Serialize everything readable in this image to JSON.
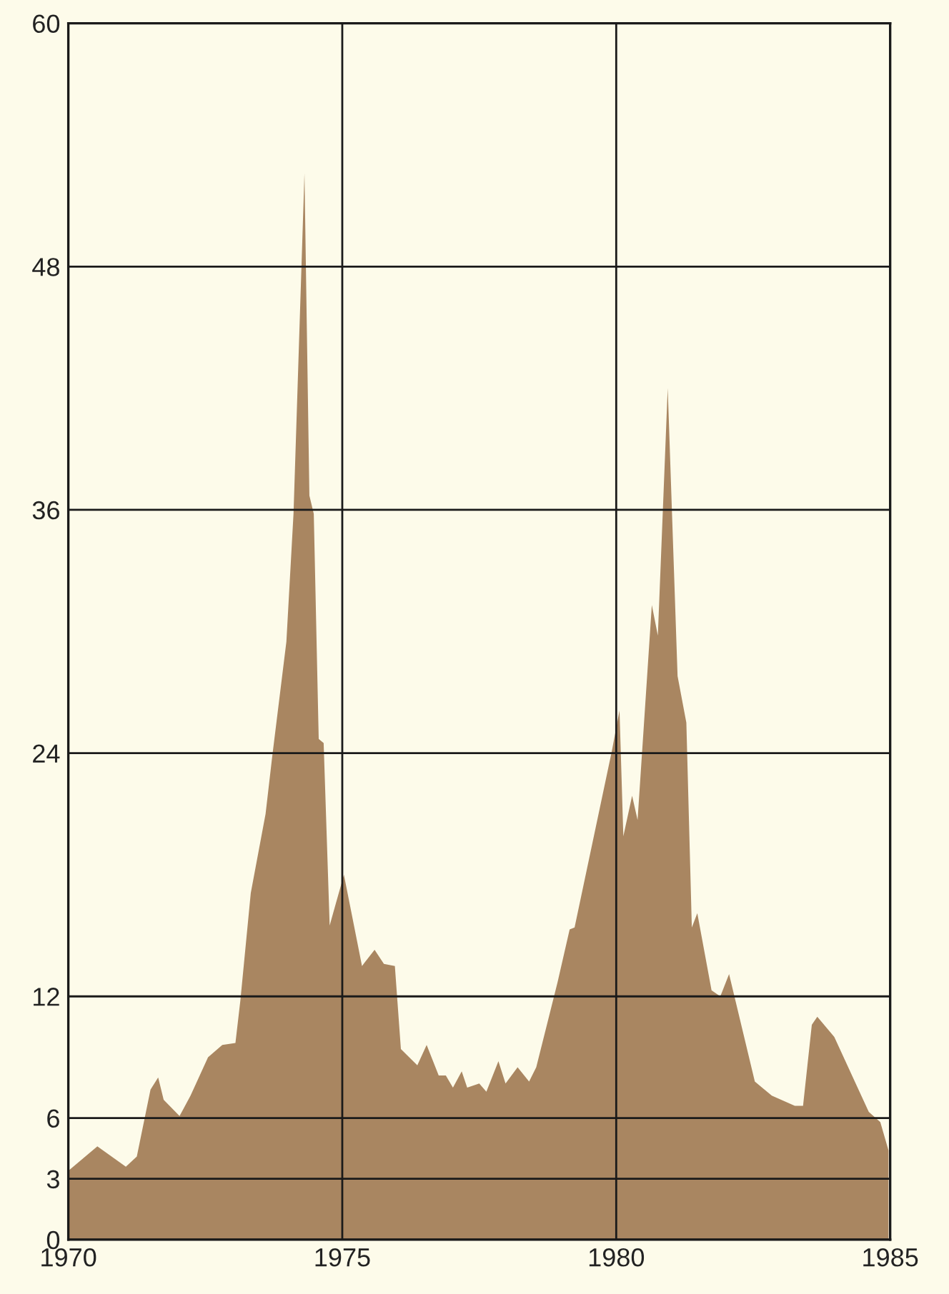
{
  "chart_data": {
    "type": "area",
    "x": [
      1970.0,
      1970.53,
      1971.05,
      1971.25,
      1971.5,
      1971.64,
      1971.74,
      1972.03,
      1972.23,
      1972.55,
      1972.81,
      1973.05,
      1973.14,
      1973.33,
      1973.6,
      1973.72,
      1973.98,
      1974.11,
      1974.31,
      1974.4,
      1974.48,
      1974.57,
      1974.66,
      1974.77,
      1975.03,
      1975.36,
      1975.59,
      1975.76,
      1975.96,
      1976.07,
      1976.37,
      1976.54,
      1976.76,
      1976.89,
      1977.02,
      1977.18,
      1977.28,
      1977.5,
      1977.63,
      1977.85,
      1977.98,
      1978.2,
      1978.41,
      1978.54,
      1978.93,
      1979.15,
      1979.24,
      1979.92,
      1980.06,
      1980.13,
      1980.29,
      1980.39,
      1980.65,
      1980.76,
      1980.94,
      1981.12,
      1981.28,
      1981.38,
      1981.48,
      1981.74,
      1981.9,
      1982.06,
      1982.53,
      1982.84,
      1983.26,
      1983.41,
      1983.57,
      1983.67,
      1983.98,
      1984.61,
      1984.82,
      1984.97
    ],
    "series": [
      {
        "color": "#a98661",
        "values": [
          3.4,
          4.6,
          3.6,
          4.1,
          7.4,
          8.0,
          6.9,
          6.1,
          7.1,
          9.0,
          9.6,
          9.7,
          11.8,
          17.1,
          21.0,
          23.8,
          29.5,
          35.8,
          52.6,
          36.7,
          35.8,
          24.7,
          24.5,
          15.5,
          18.0,
          13.5,
          14.3,
          13.6,
          13.5,
          9.4,
          8.6,
          9.6,
          8.1,
          8.1,
          7.5,
          8.3,
          7.5,
          7.7,
          7.3,
          8.8,
          7.7,
          8.5,
          7.8,
          8.5,
          12.7,
          15.3,
          15.4,
          24.1,
          26.1,
          19.9,
          21.9,
          20.7,
          31.3,
          29.8,
          42.0,
          27.8,
          25.5,
          15.4,
          16.1,
          12.3,
          12.0,
          13.1,
          7.8,
          7.1,
          6.6,
          6.6,
          10.6,
          11.0,
          10.0,
          6.3,
          5.8,
          4.4
        ]
      }
    ],
    "xlim": [
      1970,
      1985
    ],
    "ylim": [
      0,
      60
    ],
    "xticks": [
      1970,
      1975,
      1980,
      1985
    ],
    "yticks": [
      0,
      3,
      6,
      12,
      24,
      36,
      48,
      60
    ],
    "grid": true
  }
}
